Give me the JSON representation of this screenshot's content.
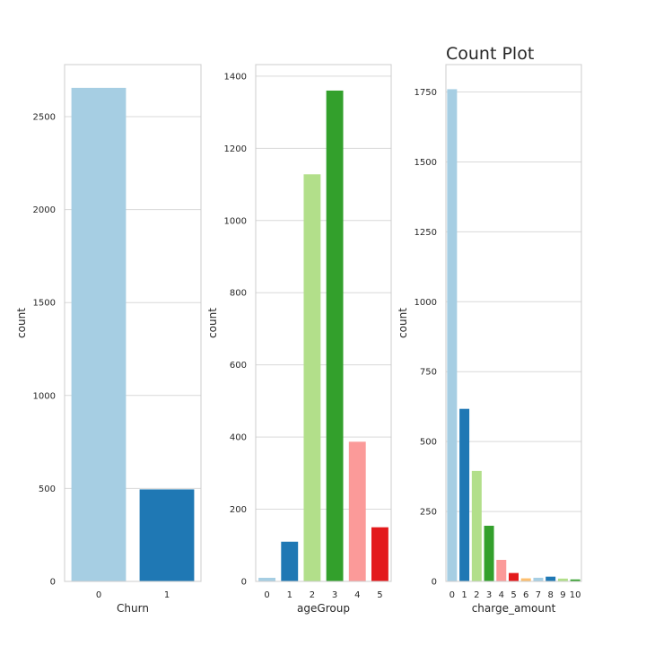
{
  "chart_data": [
    {
      "type": "bar",
      "title": "",
      "xlabel": "Churn",
      "ylabel": "count",
      "categories": [
        "0",
        "1"
      ],
      "values": [
        2655,
        495
      ],
      "colors": [
        "#a6cee3",
        "#1f78b4"
      ],
      "ylim": [
        0,
        2780
      ],
      "yticks": [
        0,
        500,
        1000,
        1500,
        2000,
        2500
      ],
      "grid": "horizontal"
    },
    {
      "type": "bar",
      "title": "",
      "xlabel": "ageGroup",
      "ylabel": "count",
      "categories": [
        "0",
        "1",
        "2",
        "3",
        "4",
        "5"
      ],
      "values": [
        10,
        110,
        1128,
        1360,
        387,
        150
      ],
      "colors": [
        "#a6cee3",
        "#1f78b4",
        "#b2df8a",
        "#33a02c",
        "#fb9a99",
        "#e31a1c"
      ],
      "ylim": [
        0,
        1432
      ],
      "yticks": [
        0,
        200,
        400,
        600,
        800,
        1000,
        1200,
        1400
      ],
      "grid": "horizontal"
    },
    {
      "type": "bar",
      "title": "Count Plot",
      "xlabel": "charge_amount",
      "ylabel": "count",
      "categories": [
        "0",
        "1",
        "2",
        "3",
        "4",
        "5",
        "6",
        "7",
        "8",
        "9",
        "10"
      ],
      "values": [
        1760,
        617,
        395,
        199,
        77,
        30,
        11,
        13,
        17,
        10,
        7
      ],
      "colors": [
        "#a6cee3",
        "#1f78b4",
        "#b2df8a",
        "#33a02c",
        "#fb9a99",
        "#e31a1c",
        "#fdbf6f",
        "#a6cee3",
        "#1f78b4",
        "#b2df8a",
        "#33a02c"
      ],
      "ylim": [
        0,
        1848
      ],
      "yticks": [
        0,
        250,
        500,
        750,
        1000,
        1250,
        1500,
        1750
      ],
      "grid": "horizontal"
    }
  ],
  "style": {
    "grid_color": "#d9d9d9",
    "frame_color": "#cccccc",
    "text_color": "#262626",
    "background": "#ffffff"
  }
}
